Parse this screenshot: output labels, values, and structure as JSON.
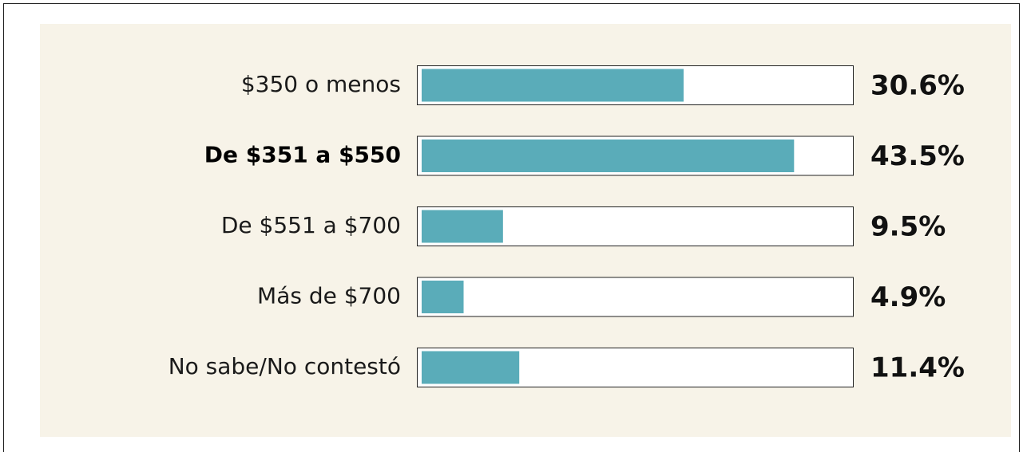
{
  "chart_data": {
    "type": "barh",
    "categories": [
      "$350 o menos",
      "De $351 a $550",
      "De $551 a $700",
      "Más de $700",
      "No sabe/No contestó"
    ],
    "values": [
      30.6,
      43.5,
      9.5,
      4.9,
      11.4
    ],
    "value_labels": [
      "30.6%",
      "43.5%",
      "9.5%",
      "4.9%",
      "11.4%"
    ],
    "color": "#5aacb9",
    "highlight": 1,
    "xlim": [
      0,
      50
    ]
  }
}
